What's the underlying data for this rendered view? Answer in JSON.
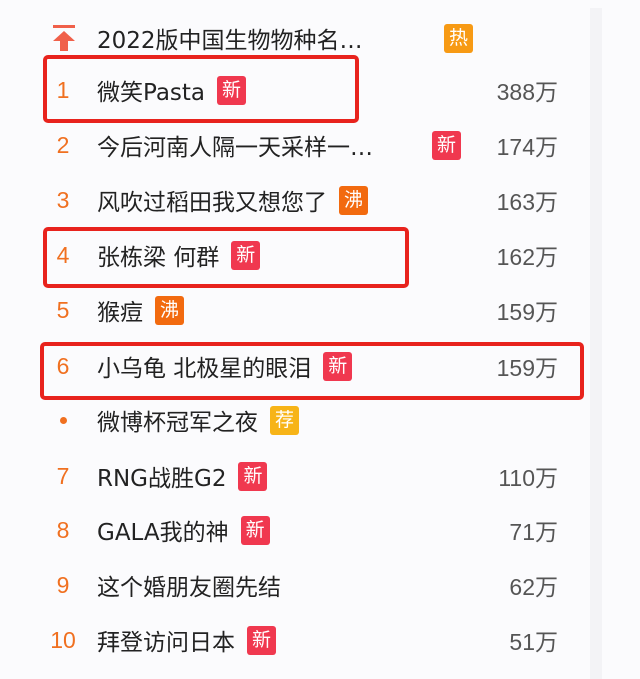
{
  "colors": {
    "rank": "#f07020",
    "新": "#f0384f",
    "热": "#f79a14",
    "沸": "#f26a0f",
    "荐": "#f7b418",
    "highlight": "#e8231d"
  },
  "pinned": {
    "icon": "pin-top-icon",
    "title": "2022版中国生物物种名…",
    "badge": "热"
  },
  "items": [
    {
      "rank": "1",
      "title": "微笑Pasta",
      "badge": "新",
      "count": "388万",
      "highlighted": true
    },
    {
      "rank": "2",
      "title": "今后河南人隔一天采样一…",
      "badge": "新",
      "count": "174万"
    },
    {
      "rank": "3",
      "title": "风吹过稻田我又想您了",
      "badge": "沸",
      "count": "163万"
    },
    {
      "rank": "4",
      "title": "张栋梁 何群",
      "badge": "新",
      "count": "162万",
      "highlighted": true
    },
    {
      "rank": "5",
      "title": "猴痘",
      "badge": "沸",
      "count": "159万"
    },
    {
      "rank": "6",
      "title": "小乌龟 北极星的眼泪",
      "badge": "新",
      "count": "159万",
      "highlighted": true
    },
    {
      "rank": "•",
      "title": "微博杯冠军之夜",
      "badge": "荐",
      "count": ""
    },
    {
      "rank": "7",
      "title": "RNG战胜G2",
      "badge": "新",
      "count": "110万"
    },
    {
      "rank": "8",
      "title": "GALA我的神",
      "badge": "新",
      "count": "71万"
    },
    {
      "rank": "9",
      "title": "这个婚朋友圈先结",
      "badge": "",
      "count": "62万"
    },
    {
      "rank": "10",
      "title": "拜登访问日本",
      "badge": "新",
      "count": "51万"
    }
  ]
}
